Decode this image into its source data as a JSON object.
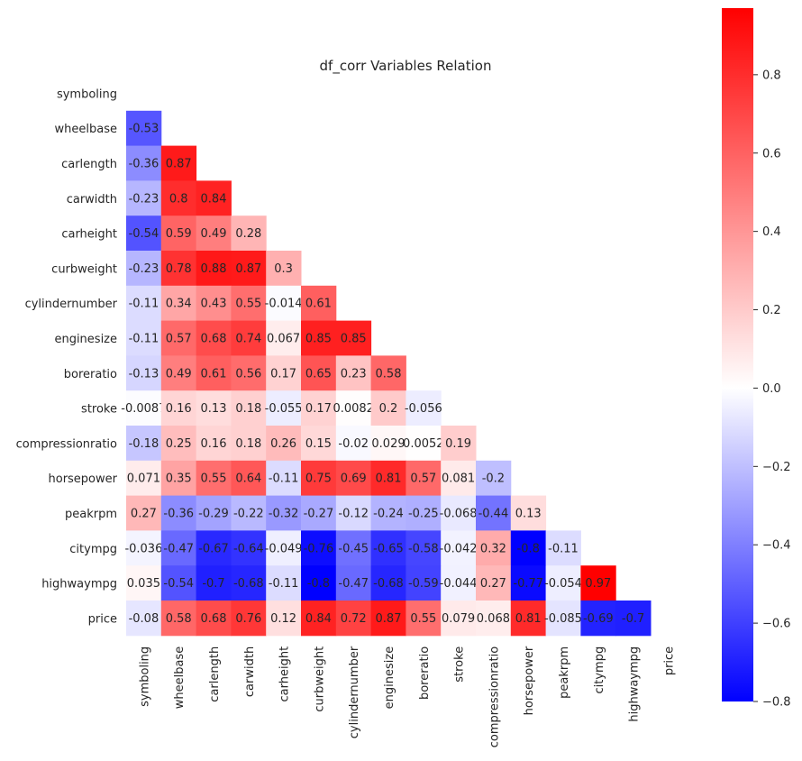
{
  "chart_data": {
    "type": "heatmap",
    "title": "df_corr Variables Relation",
    "mask": "upper-triangle-including-diagonal",
    "variables": [
      "symboling",
      "wheelbase",
      "carlength",
      "carwidth",
      "carheight",
      "curbweight",
      "cylindernumber",
      "enginesize",
      "boreratio",
      "stroke",
      "compressionratio",
      "horsepower",
      "peakrpm",
      "citympg",
      "highwaympg",
      "price"
    ],
    "cell_labels": [
      [],
      [
        "-0.53"
      ],
      [
        "-0.36",
        "0.87"
      ],
      [
        "-0.23",
        "0.8",
        "0.84"
      ],
      [
        "-0.54",
        "0.59",
        "0.49",
        "0.28"
      ],
      [
        "-0.23",
        "0.78",
        "0.88",
        "0.87",
        "0.3"
      ],
      [
        "-0.11",
        "0.34",
        "0.43",
        "0.55",
        "-0.014",
        "0.61"
      ],
      [
        "-0.11",
        "0.57",
        "0.68",
        "0.74",
        "0.067",
        "0.85",
        "0.85"
      ],
      [
        "-0.13",
        "0.49",
        "0.61",
        "0.56",
        "0.17",
        "0.65",
        "0.23",
        "0.58"
      ],
      [
        "-0.0087",
        "0.16",
        "0.13",
        "0.18",
        "-0.055",
        "0.17",
        "0.0082",
        "0.2",
        "-0.056"
      ],
      [
        "-0.18",
        "0.25",
        "0.16",
        "0.18",
        "0.26",
        "0.15",
        "-0.02",
        "0.029",
        "0.0052",
        "0.19"
      ],
      [
        "0.071",
        "0.35",
        "0.55",
        "0.64",
        "-0.11",
        "0.75",
        "0.69",
        "0.81",
        "0.57",
        "0.081",
        "-0.2"
      ],
      [
        "0.27",
        "-0.36",
        "-0.29",
        "-0.22",
        "-0.32",
        "-0.27",
        "-0.12",
        "-0.24",
        "-0.25",
        "-0.068",
        "-0.44",
        "0.13"
      ],
      [
        "-0.036",
        "-0.47",
        "-0.67",
        "-0.64",
        "-0.049",
        "-0.76",
        "-0.45",
        "-0.65",
        "-0.58",
        "-0.042",
        "0.32",
        "-0.8",
        "-0.11"
      ],
      [
        "0.035",
        "-0.54",
        "-0.7",
        "-0.68",
        "-0.11",
        "-0.8",
        "-0.47",
        "-0.68",
        "-0.59",
        "-0.044",
        "0.27",
        "-0.77",
        "-0.054",
        "0.97"
      ],
      [
        "-0.08",
        "0.58",
        "0.68",
        "0.76",
        "0.12",
        "0.84",
        "0.72",
        "0.87",
        "0.55",
        "0.079",
        "0.068",
        "0.81",
        "-0.085",
        "-0.69",
        "-0.7"
      ]
    ],
    "colormap": "bwr",
    "vmin": -0.8,
    "vmax": 0.97,
    "colorbar_ticks": [
      "-0.8",
      "-0.6",
      "-0.4",
      "-0.2",
      "0.0",
      "0.2",
      "0.4",
      "0.6",
      "0.8"
    ],
    "colors": {
      "low": "#0000ff",
      "mid": "#ffffff",
      "high": "#ff0000",
      "text_light": "#ffffff",
      "text_dark": "#262626"
    }
  }
}
